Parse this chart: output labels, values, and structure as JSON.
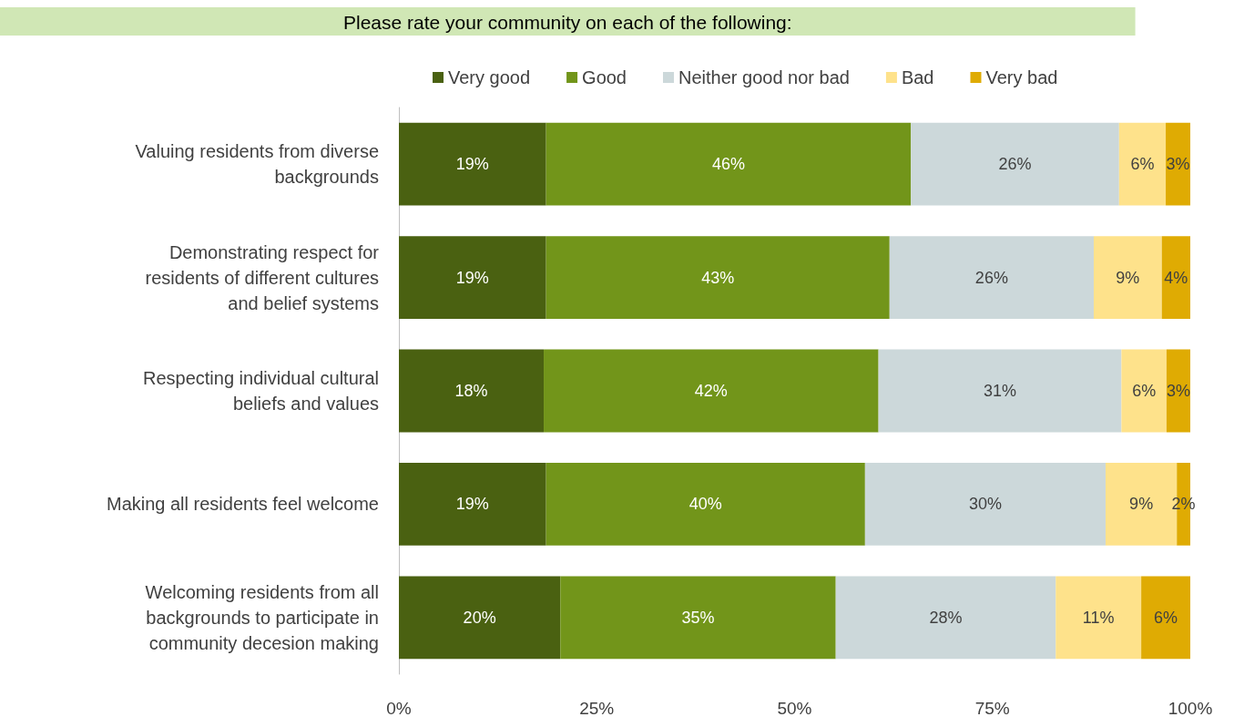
{
  "chart_data": {
    "type": "bar",
    "orientation": "horizontal",
    "stacked": true,
    "title": "Please rate your community on each of the following:",
    "categories": [
      "Valuing residents from diverse backgrounds",
      "Demonstrating respect for residents of different cultures and belief systems",
      "Respecting individual cultural beliefs and values",
      "Making all residents feel welcome",
      "Welcoming residents from all backgrounds to participate in community decesion making"
    ],
    "series": [
      {
        "name": "Very good",
        "color": "#4a6111",
        "values": [
          18.6,
          18.6,
          18.3,
          18.6,
          20.4
        ],
        "value_labels": [
          "19%",
          "19%",
          "18%",
          "19%",
          "20%"
        ]
      },
      {
        "name": "Good",
        "color": "#72951a",
        "values": [
          46.1,
          43.4,
          42.3,
          40.3,
          34.8
        ],
        "value_labels": [
          "46%",
          "43%",
          "42%",
          "40%",
          "35%"
        ]
      },
      {
        "name": "Neither good nor bad",
        "color": "#ccd8da",
        "values": [
          26.3,
          25.8,
          30.7,
          30.4,
          27.8
        ],
        "value_labels": [
          "26%",
          "26%",
          "31%",
          "30%",
          "28%"
        ]
      },
      {
        "name": "Bad",
        "color": "#fee28b",
        "values": [
          5.9,
          8.6,
          5.7,
          9.0,
          10.8
        ],
        "value_labels": [
          "6%",
          "9%",
          "6%",
          "9%",
          "11%"
        ]
      },
      {
        "name": "Very bad",
        "color": "#dfab03",
        "values": [
          3.1,
          3.6,
          3.0,
          1.7,
          6.2
        ],
        "value_labels": [
          "3%",
          "4%",
          "3%",
          "2%",
          "6%"
        ]
      }
    ],
    "xlim": [
      0,
      100
    ],
    "xticks": [
      {
        "value": 0,
        "label": "0%"
      },
      {
        "value": 25,
        "label": "25%"
      },
      {
        "value": 50,
        "label": "50%"
      },
      {
        "value": 75,
        "label": "75%"
      },
      {
        "value": 100,
        "label": "100%"
      }
    ],
    "grid": false,
    "legend": "top"
  }
}
